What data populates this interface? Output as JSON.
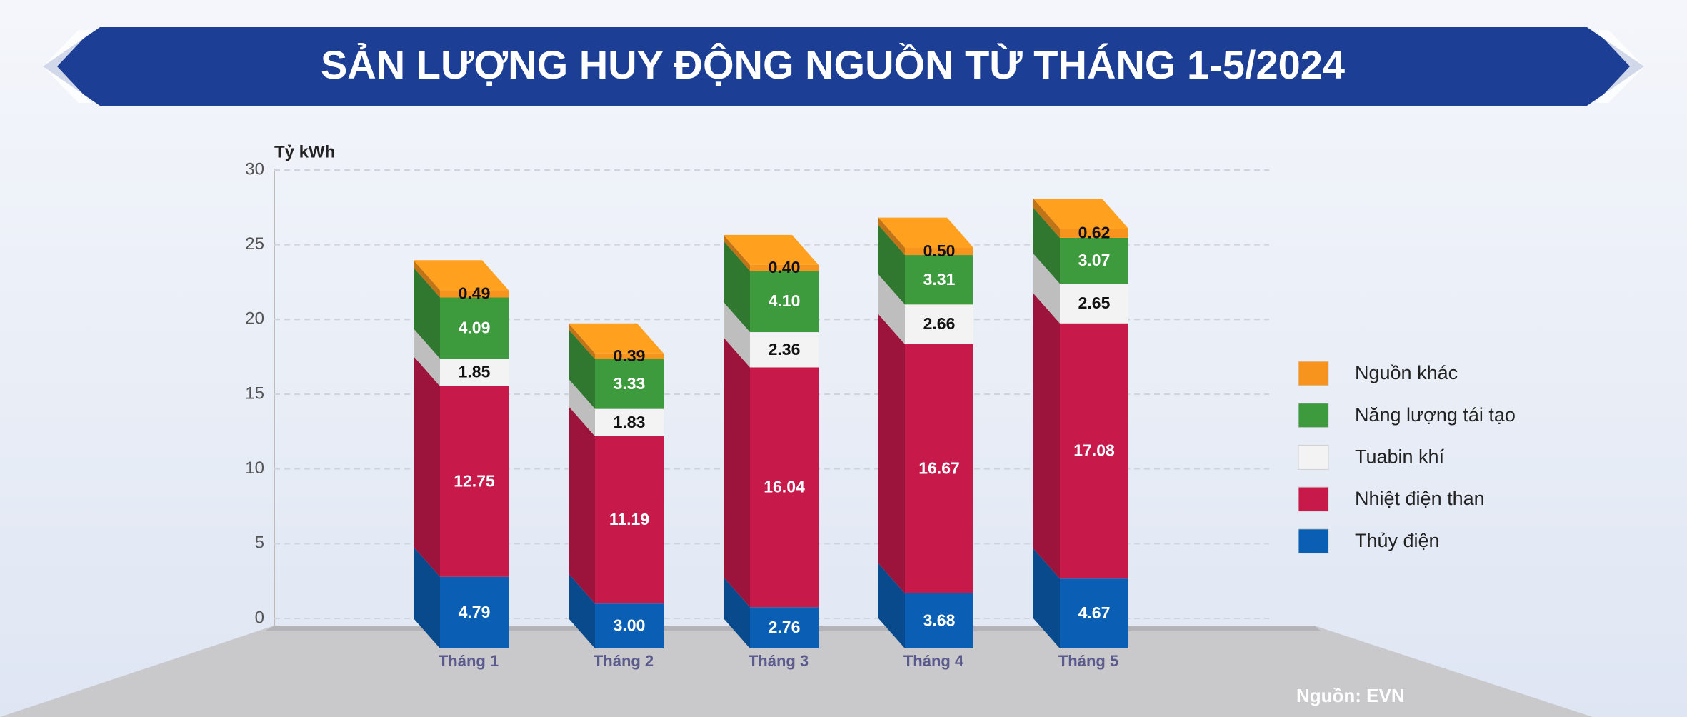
{
  "chart_data": {
    "type": "stacked-bar-3d",
    "title": "SẢN LƯỢNG HUY ĐỘNG NGUỒN TỪ THÁNG 1-5/2024",
    "y_label": "Tỷ kWh",
    "source": "Nguồn: EVN",
    "categories": [
      "Tháng 1",
      "Tháng 2",
      "Tháng 3",
      "Tháng 4",
      "Tháng 5"
    ],
    "series": [
      {
        "name": "Thủy điện",
        "color": "#0a5fb4",
        "values": [
          4.79,
          3,
          2.76,
          3.68,
          4.67
        ],
        "value_labels": [
          "4.79",
          "3.00",
          "2.76",
          "3.68",
          "4.67"
        ]
      },
      {
        "name": "Nhiệt điện than",
        "color": "#c8194b",
        "values": [
          12.75,
          11.19,
          16.04,
          16.67,
          17.08
        ],
        "value_labels": [
          "12.75",
          "11.19",
          "16.04",
          "16.67",
          "17.08"
        ]
      },
      {
        "name": "Tuabin khí",
        "color": "#f3f3f3",
        "values": [
          1.85,
          1.83,
          2.36,
          2.66,
          2.65
        ],
        "value_labels": [
          "1.85",
          "1.83",
          "2.36",
          "2.66",
          "2.65"
        ]
      },
      {
        "name": "Năng lượng tái tạo",
        "color": "#3d9a3d",
        "values": [
          4.09,
          3.33,
          4.1,
          3.31,
          3.07
        ],
        "value_labels": [
          "4.09",
          "3.33",
          "4.10",
          "3.31",
          "3.07"
        ]
      },
      {
        "name": "Nguồn khác",
        "color": "#f7941d",
        "values": [
          0.49,
          0.39,
          0.4,
          0.5,
          0.62
        ],
        "value_labels": [
          "0.49",
          "0.39",
          "0.40",
          "0.50",
          "0.62"
        ]
      }
    ],
    "ylim": [
      0,
      30
    ],
    "yticks": [
      0,
      5,
      10,
      15,
      20,
      25,
      30
    ],
    "grid": true,
    "legend": "right"
  }
}
